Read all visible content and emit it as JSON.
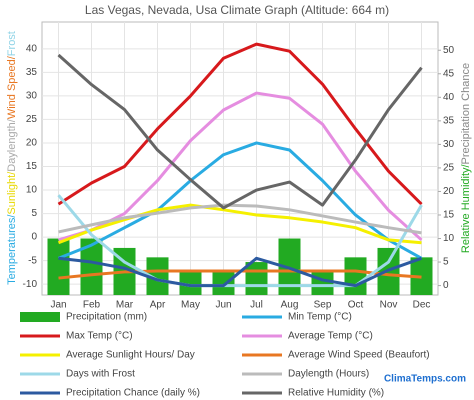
{
  "chart_data": {
    "type": "combo",
    "title": "Las Vegas, Nevada, Usa Climate Graph (Altitude: 664 m)",
    "y_label_parts": [
      {
        "text": "Temperatures/",
        "color": "#29abe2"
      },
      {
        "text": "Sunlight/",
        "color": "#e8d800"
      },
      {
        "text": "Daylength/",
        "color": "#aaaaaa"
      },
      {
        "text": "Wind Speed/",
        "color": "#e87722"
      },
      {
        "text": "Frost",
        "color": "#8fd3e6"
      }
    ],
    "y2_label_parts": [
      {
        "text": "Relative Humidity/",
        "color": "#22aa22"
      },
      {
        "text": "Precipitation Chance",
        "color": "#888888"
      }
    ],
    "watermark": "ClimaTemps.com",
    "categories": [
      "Jan",
      "Feb",
      "Mar",
      "Apr",
      "May",
      "Jun",
      "Jul",
      "Aug",
      "Sep",
      "Oct",
      "Nov",
      "Dec"
    ],
    "ylim": [
      -12.3,
      45.7
    ],
    "yticks": [
      -10,
      -5,
      0,
      5,
      10,
      15,
      20,
      25,
      30,
      35,
      40
    ],
    "y2lim": [
      -2,
      56
    ],
    "y2ticks": [
      0,
      5,
      10,
      15,
      20,
      25,
      30,
      35,
      40,
      45,
      50
    ],
    "grid": true,
    "series": [
      {
        "name": "Precipitation (mm)",
        "kind": "bar",
        "axis": "y2",
        "color": "#22aa22",
        "values": [
          10,
          10,
          8,
          6,
          3,
          3,
          5,
          10,
          3,
          6,
          8,
          6
        ]
      },
      {
        "name": "Min Temp (°C)",
        "kind": "line",
        "axis": "y",
        "color": "#29abe2",
        "values": [
          -4.5,
          -1.7,
          2,
          5.7,
          12,
          17.5,
          20,
          18.5,
          12,
          4.7,
          -0.6,
          -4.5
        ]
      },
      {
        "name": "Max Temp (°C)",
        "kind": "line",
        "axis": "y",
        "color": "#d7191c",
        "values": [
          7,
          11.5,
          15,
          23,
          30,
          38,
          41,
          39.5,
          32.5,
          23,
          14,
          7
        ]
      },
      {
        "name": "Average Temp (°C)",
        "kind": "line",
        "axis": "y",
        "color": "#e58de0",
        "values": [
          -0.6,
          1.5,
          5,
          12,
          20.5,
          27,
          30.6,
          29.5,
          24,
          14,
          5.7,
          -0.6
        ]
      },
      {
        "name": "Average Sunlight Hours/ Day",
        "kind": "line",
        "axis": "y2",
        "color": "#f5f000",
        "values": [
          9.1,
          11.8,
          14,
          16.1,
          17.1,
          16.1,
          15,
          14.4,
          13.5,
          12.3,
          9.7,
          9.1
        ]
      },
      {
        "name": "Average Wind Speed (Beaufort)",
        "kind": "line",
        "axis": "y2",
        "color": "#e87722",
        "values": [
          1.6,
          2.3,
          2.9,
          3.1,
          3.1,
          3.1,
          3.1,
          3.1,
          3.1,
          3.1,
          2.3,
          1.8
        ]
      },
      {
        "name": "Days with Frost",
        "kind": "line",
        "axis": "y2",
        "color": "#9dd9e8",
        "values": [
          19.2,
          10.8,
          5,
          1.2,
          0,
          0,
          0,
          0,
          0,
          0,
          5,
          17.1
        ]
      },
      {
        "name": "Daylength (Hours)",
        "kind": "line",
        "axis": "y2",
        "color": "#bbbbbb",
        "values": [
          11.4,
          12.9,
          14.4,
          15.4,
          16.5,
          17.1,
          16.9,
          16.1,
          14.8,
          13.5,
          12.3,
          11.2
        ]
      },
      {
        "name": "Precipitation Chance (daily %)",
        "kind": "line",
        "axis": "y2",
        "color": "#2c5aa0",
        "values": [
          5.8,
          5,
          3.7,
          1.2,
          0,
          0,
          5.8,
          3.7,
          1.2,
          0,
          3.3,
          5.8
        ]
      },
      {
        "name": "Relative Humidity (%)",
        "kind": "line",
        "axis": "y2",
        "color": "#666666",
        "values": [
          49,
          42.7,
          37.4,
          28.8,
          22.5,
          16.5,
          20.3,
          22,
          17.1,
          26.7,
          37.4,
          46.3
        ]
      }
    ]
  }
}
